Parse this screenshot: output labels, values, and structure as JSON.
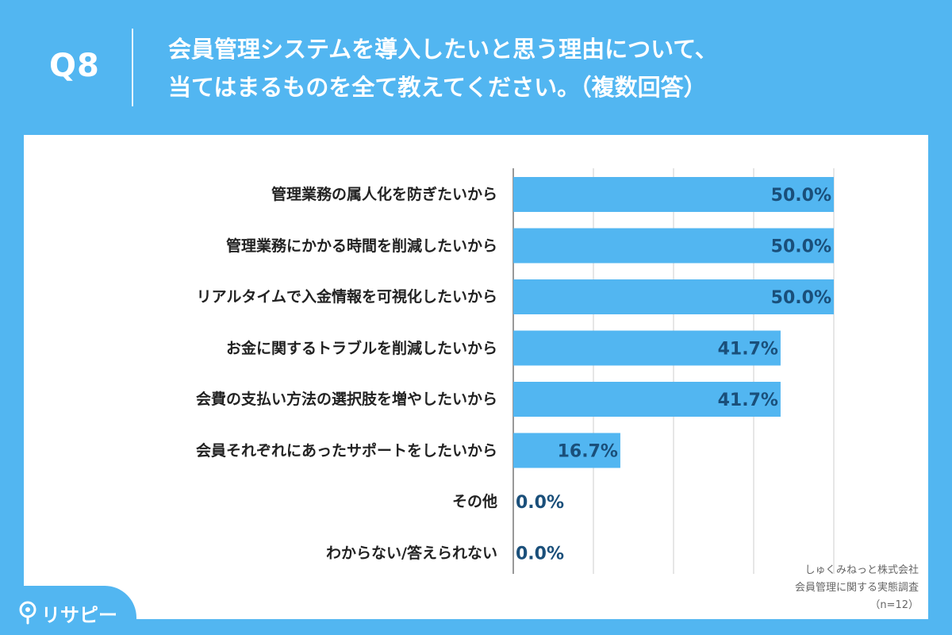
{
  "header": {
    "question_number": "Q8",
    "title_line1": "会員管理システムを導入したいと思う理由について、",
    "title_line2": "当てはまるものを全て教えてください。（複数回答）"
  },
  "footer": {
    "company": "しゅくみねっと株式会社",
    "survey": "会員管理に関する実態調査",
    "sample": "（n=12）"
  },
  "logo": {
    "text": "リサピー",
    "icon": "pin-icon"
  },
  "colors": {
    "background": "#52b6f1",
    "bar": "#52b6f1",
    "value_text": "#1a4f7a",
    "grid": "#cccccc"
  },
  "chart_data": {
    "type": "bar",
    "orientation": "horizontal",
    "categories": [
      "管理業務の属人化を防ぎたいから",
      "管理業務にかかる時間を削減したいから",
      "リアルタイムで入金情報を可視化したいから",
      "お金に関するトラブルを削減したいから",
      "会費の支払い方法の選択肢を増やしたいから",
      "会員それぞれにあったサポートをしたいから",
      "その他",
      "わからない/答えられない"
    ],
    "values": [
      50.0,
      50.0,
      50.0,
      41.7,
      41.7,
      16.7,
      0.0,
      0.0
    ],
    "value_labels": [
      "50.0%",
      "50.0%",
      "50.0%",
      "41.7%",
      "41.7%",
      "16.7%",
      "0.0%",
      "0.0%"
    ],
    "xlim": [
      0,
      50
    ],
    "grid": true
  }
}
